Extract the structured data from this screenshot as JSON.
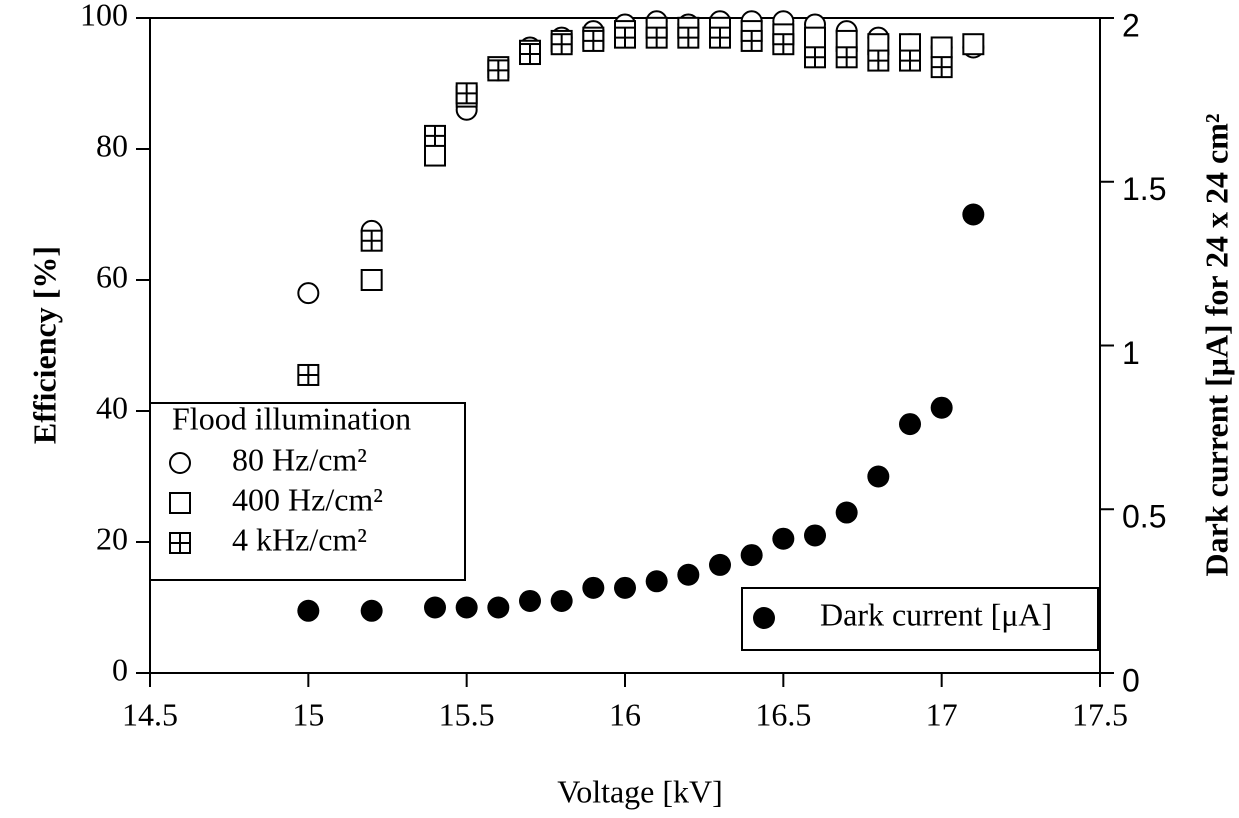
{
  "chart_data": {
    "type": "scatter",
    "x_label": "Voltage [kV]",
    "y_label": "Efficiency [%]",
    "y2_label": "Dark current [μA] for 24 x 24 cm²",
    "legend_title": "Flood illumination",
    "x": [
      15,
      15.2,
      15.4,
      15.5,
      15.6,
      15.7,
      15.8,
      15.9,
      16,
      16.1,
      16.2,
      16.3,
      16.4,
      16.5,
      16.6,
      16.7,
      16.8,
      16.9,
      17,
      17.1
    ],
    "xlim": [
      14.5,
      17.5
    ],
    "xticks": [
      14.5,
      15,
      15.5,
      16,
      16.5,
      17,
      17.5
    ],
    "ylim": [
      0,
      100
    ],
    "yticks": [
      0,
      20,
      40,
      60,
      80,
      100
    ],
    "y2lim": [
      0,
      2
    ],
    "y2ticks": [
      0,
      0.5,
      1,
      1.5,
      2
    ],
    "series": [
      {
        "name": "80 Hz/cm²",
        "color": "#000000",
        "marker": "circle",
        "values": [
          58,
          67.5,
          79,
          86,
          92,
          95.5,
          97,
          98,
          99,
          99.5,
          99,
          99.5,
          99.5,
          99.5,
          99,
          98,
          97,
          96,
          95.5,
          95.5
        ]
      },
      {
        "name": "400 Hz/cm²",
        "color": "#000000",
        "marker": "square",
        "values": [
          null,
          60,
          79,
          88,
          92.5,
          95,
          96.5,
          97,
          98,
          98.5,
          98.5,
          98.5,
          98,
          97.5,
          97,
          96.5,
          96,
          96,
          95.5,
          96
        ]
      },
      {
        "name": "4 kHz/cm²",
        "color": "#000000",
        "marker": "square-cross",
        "values": [
          45.5,
          66,
          82,
          88.5,
          92,
          94.5,
          96,
          96.5,
          97,
          97,
          97,
          97,
          96.5,
          96,
          94,
          94,
          93.5,
          93.5,
          92.5,
          null
        ]
      },
      {
        "name": "Dark current [μA]",
        "color": "#000000",
        "marker": "filled-circle",
        "axis": "y2",
        "values": [
          0.19,
          0.19,
          0.2,
          0.2,
          0.2,
          0.22,
          0.22,
          0.26,
          0.26,
          0.28,
          0.3,
          0.33,
          0.36,
          0.41,
          0.42,
          0.49,
          0.6,
          0.76,
          0.81,
          1.4
        ]
      }
    ]
  }
}
